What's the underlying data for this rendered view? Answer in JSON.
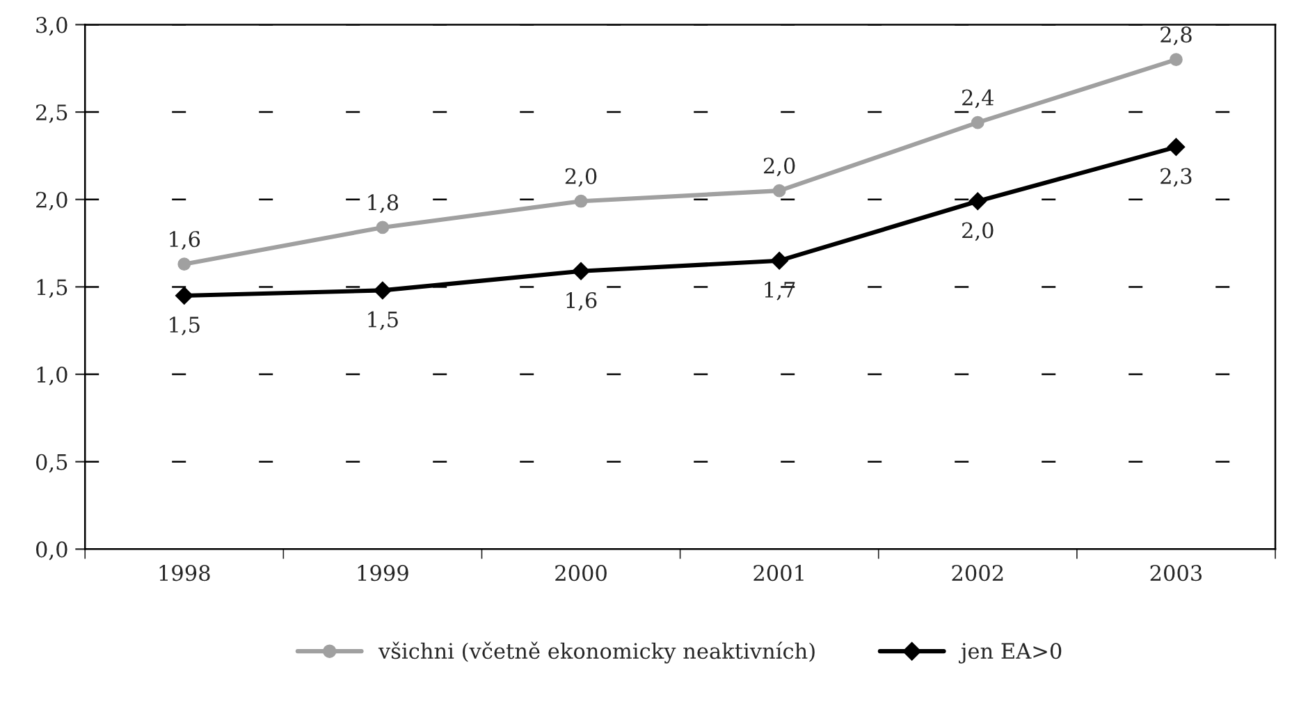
{
  "chart_data": {
    "type": "line",
    "categories": [
      "1998",
      "1999",
      "2000",
      "2001",
      "2002",
      "2003"
    ],
    "series": [
      {
        "name": "všichni (včetně ekonomicky neaktivních)",
        "color": "#a0a0a0",
        "marker": "circle",
        "values": [
          1.63,
          1.84,
          1.99,
          2.05,
          2.44,
          2.8
        ],
        "value_labels": [
          "1,6",
          "1,8",
          "2,0",
          "2,0",
          "2,4",
          "2,8"
        ]
      },
      {
        "name": "jen EA>0",
        "color": "#000000",
        "marker": "diamond",
        "values": [
          1.45,
          1.48,
          1.59,
          1.65,
          1.99,
          2.3
        ],
        "value_labels": [
          "1,5",
          "1,5",
          "1,6",
          "1,7",
          "2,0",
          "2,3"
        ]
      }
    ],
    "ylim": [
      0,
      3
    ],
    "yticks": [
      {
        "value": 0,
        "label": "0,0"
      },
      {
        "value": 0.5,
        "label": "0,5"
      },
      {
        "value": 1,
        "label": "1,0"
      },
      {
        "value": 1.5,
        "label": "1,5"
      },
      {
        "value": 2,
        "label": "2,0"
      },
      {
        "value": 2.5,
        "label": "2,5"
      },
      {
        "value": 3,
        "label": "3,0"
      }
    ],
    "grid": "y",
    "legend": "bottom",
    "line_style": "solid"
  }
}
